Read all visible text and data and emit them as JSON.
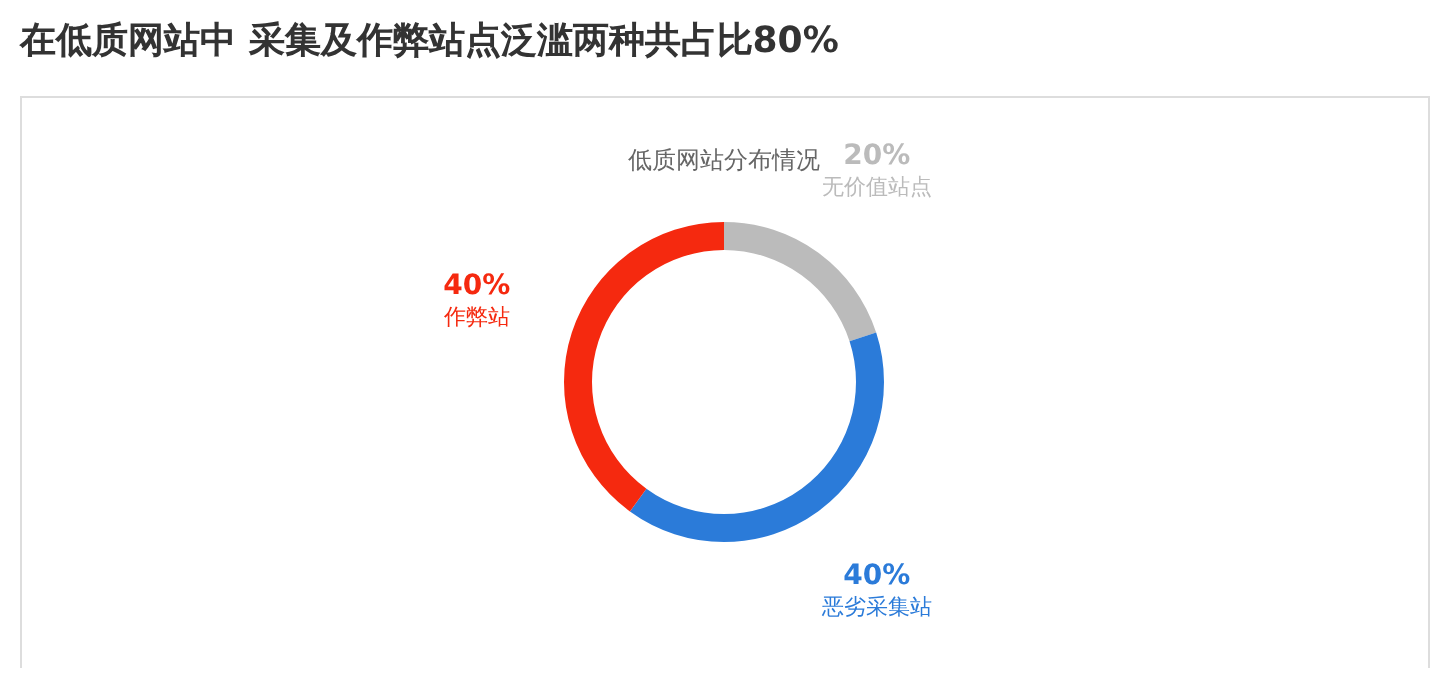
{
  "chart_data": {
    "type": "donut",
    "title": "在低质网站中 采集及作弊站点泛滥两种共占比80%",
    "subtitle": "低质网站分布情况",
    "categories": [
      "无价值站点",
      "恶劣采集站",
      "作弊站"
    ],
    "values": [
      20,
      40,
      40
    ],
    "colors": [
      "#bbbbbb",
      "#2b7bd9",
      "#f5290f"
    ],
    "value_labels": [
      "20%",
      "40%",
      "40%"
    ]
  }
}
